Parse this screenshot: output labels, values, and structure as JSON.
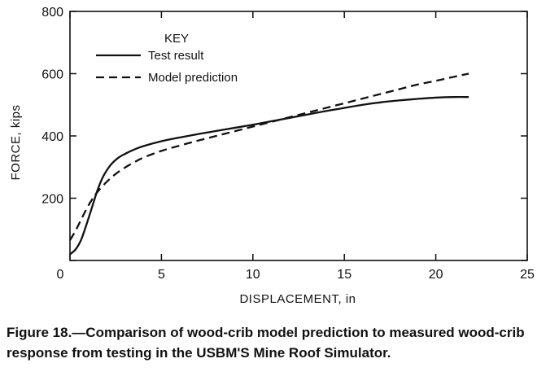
{
  "caption": "Figure 18.—Comparison of wood-crib model prediction to measured wood-crib response from testing in the USBM'S Mine Roof Simulator.",
  "chart_data": {
    "type": "line",
    "title": "",
    "xlabel": "DISPLACEMENT, in",
    "ylabel": "FORCE, kips",
    "xlim": [
      0,
      25
    ],
    "ylim": [
      0,
      800
    ],
    "xticks": [
      0,
      5,
      10,
      15,
      20,
      25
    ],
    "yticks": [
      0,
      200,
      400,
      600,
      800
    ],
    "grid": false,
    "legend": {
      "title": "KEY",
      "placement": "top-left"
    },
    "series": [
      {
        "name": "Test result",
        "style": "solid",
        "color": "#111111",
        "x": [
          0,
          0.3,
          0.6,
          0.9,
          1.2,
          1.5,
          1.8,
          2.2,
          2.6,
          3.0,
          3.5,
          4.0,
          5,
          6,
          7,
          8,
          9,
          10,
          11,
          12,
          13,
          14,
          15,
          16,
          17,
          18,
          19,
          20,
          21,
          21.8
        ],
        "y": [
          20,
          35,
          65,
          115,
          170,
          225,
          268,
          305,
          328,
          342,
          356,
          367,
          383,
          395,
          406,
          416,
          426,
          436,
          447,
          458,
          469,
          480,
          490,
          500,
          508,
          514,
          519,
          523,
          525,
          525
        ]
      },
      {
        "name": "Model prediction",
        "style": "dashed",
        "color": "#111111",
        "x": [
          0,
          0.3,
          0.6,
          0.9,
          1.2,
          1.5,
          2.0,
          2.5,
          3.0,
          3.5,
          4.0,
          5,
          6,
          7,
          8,
          9,
          10,
          11,
          12,
          13,
          14,
          15,
          16,
          17,
          18,
          19,
          20,
          21,
          21.8
        ],
        "y": [
          65,
          95,
          130,
          165,
          195,
          220,
          252,
          278,
          298,
          315,
          330,
          352,
          369,
          385,
          400,
          415,
          430,
          445,
          460,
          475,
          490,
          505,
          520,
          535,
          550,
          565,
          577,
          590,
          600
        ]
      }
    ]
  }
}
